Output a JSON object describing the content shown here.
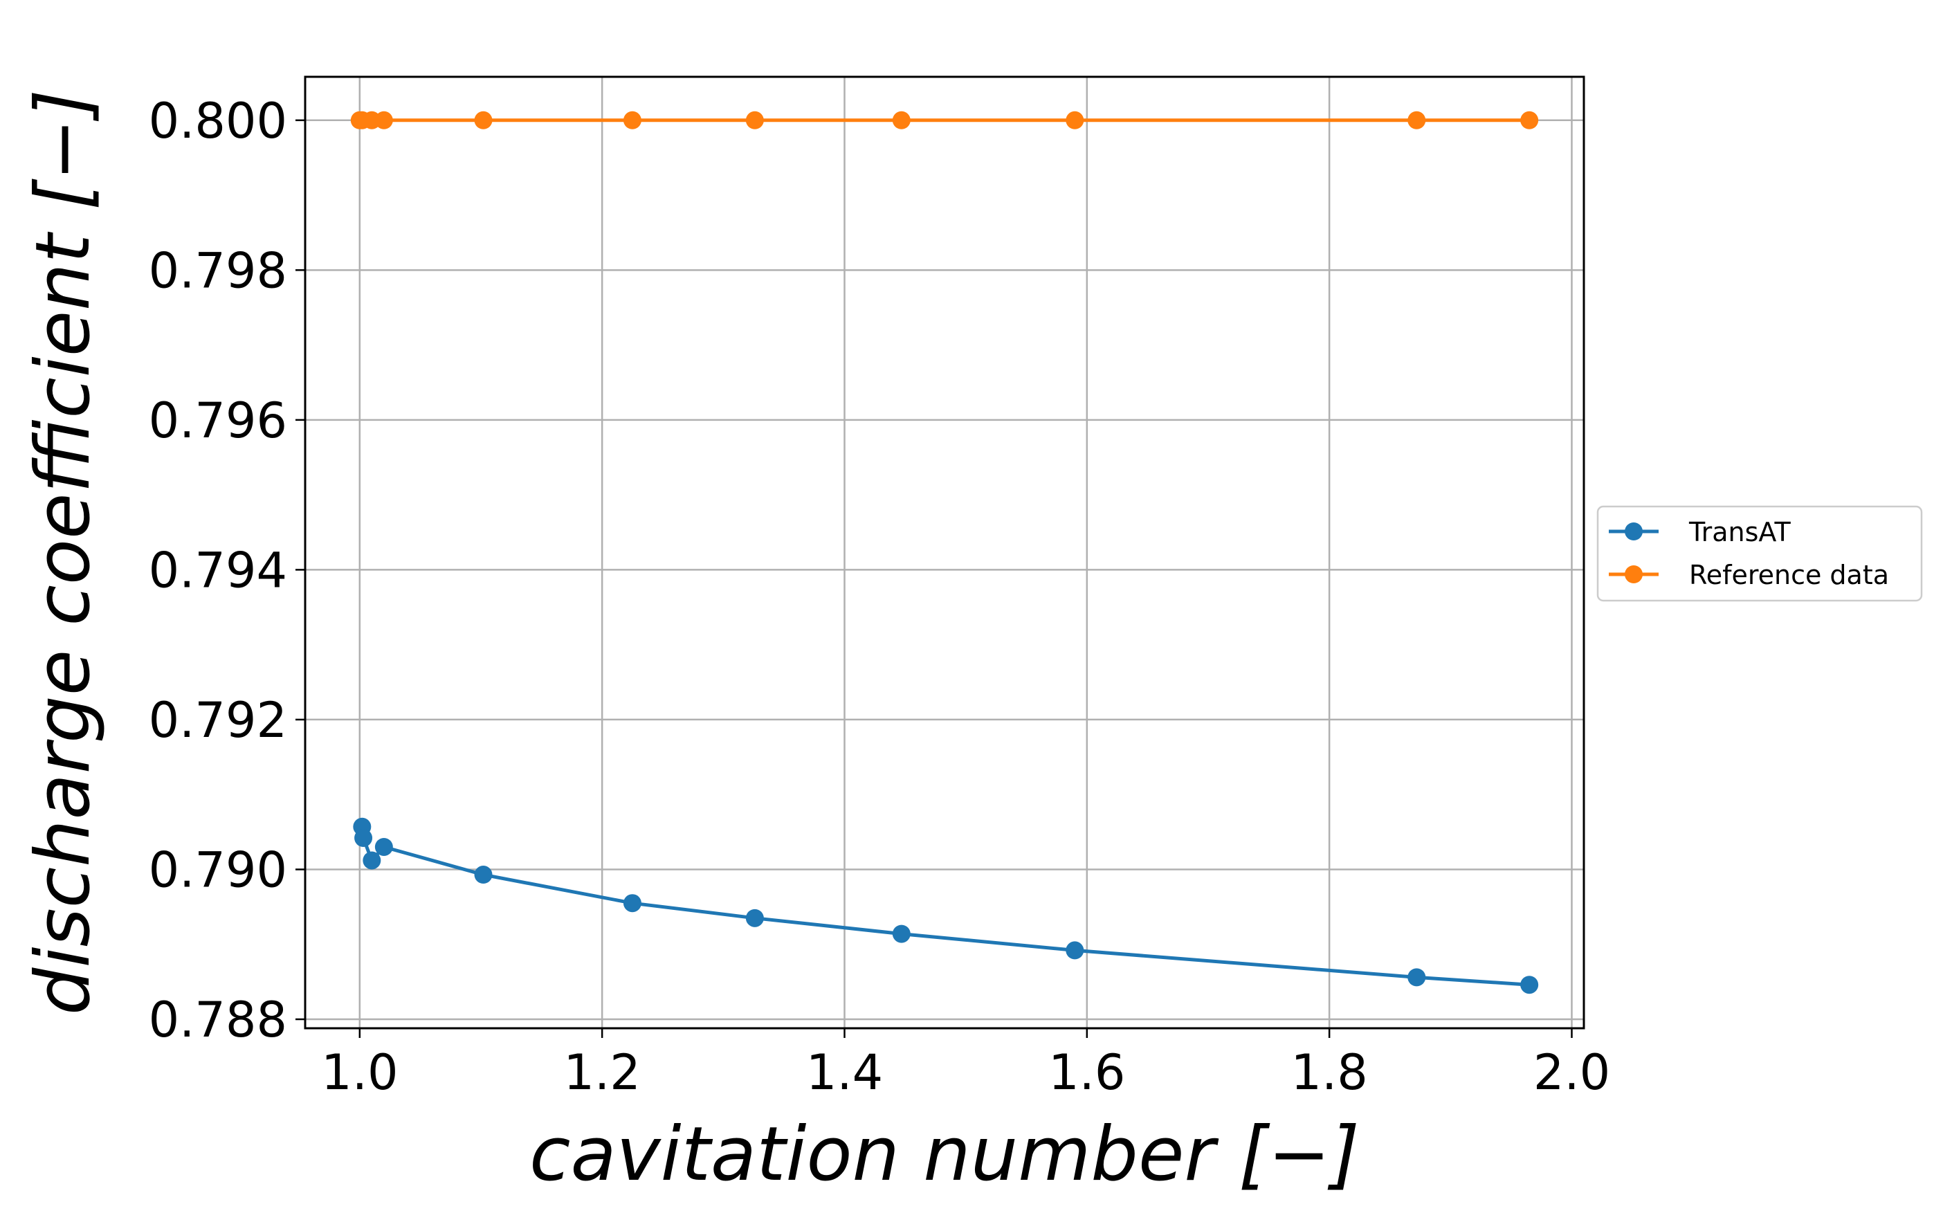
{
  "chart_data": {
    "type": "line",
    "title": "",
    "xlabel": "cavitation number [−]",
    "ylabel": "discharge coefficient [−]",
    "xlim": [
      0.955,
      2.01
    ],
    "ylim": [
      0.78788,
      0.80058
    ],
    "xticks": [
      1.0,
      1.2,
      1.4,
      1.6,
      1.8,
      2.0
    ],
    "xtick_labels": [
      "1.0",
      "1.2",
      "1.4",
      "1.6",
      "1.8",
      "2.0"
    ],
    "yticks": [
      0.788,
      0.79,
      0.792,
      0.794,
      0.796,
      0.798,
      0.8
    ],
    "ytick_labels": [
      "0.788",
      "0.790",
      "0.792",
      "0.794",
      "0.796",
      "0.798",
      "0.800"
    ],
    "grid": true,
    "legend_position": "outside-right",
    "series": [
      {
        "name": "TransAT",
        "color": "#1f77b4",
        "marker": "circle",
        "x": [
          1.002,
          1.003,
          1.01,
          1.02,
          1.102,
          1.225,
          1.326,
          1.447,
          1.59,
          1.872,
          1.965
        ],
        "y": [
          0.79057,
          0.79042,
          0.79012,
          0.7903,
          0.78993,
          0.78955,
          0.78935,
          0.78914,
          0.78892,
          0.78856,
          0.78846
        ]
      },
      {
        "name": "Reference data",
        "color": "#ff7f0e",
        "marker": "circle",
        "x": [
          1.0,
          1.002,
          1.01,
          1.02,
          1.102,
          1.225,
          1.326,
          1.447,
          1.59,
          1.872,
          1.965
        ],
        "y": [
          0.8,
          0.8,
          0.8,
          0.8,
          0.8,
          0.8,
          0.8,
          0.8,
          0.8,
          0.8,
          0.8
        ]
      }
    ]
  }
}
